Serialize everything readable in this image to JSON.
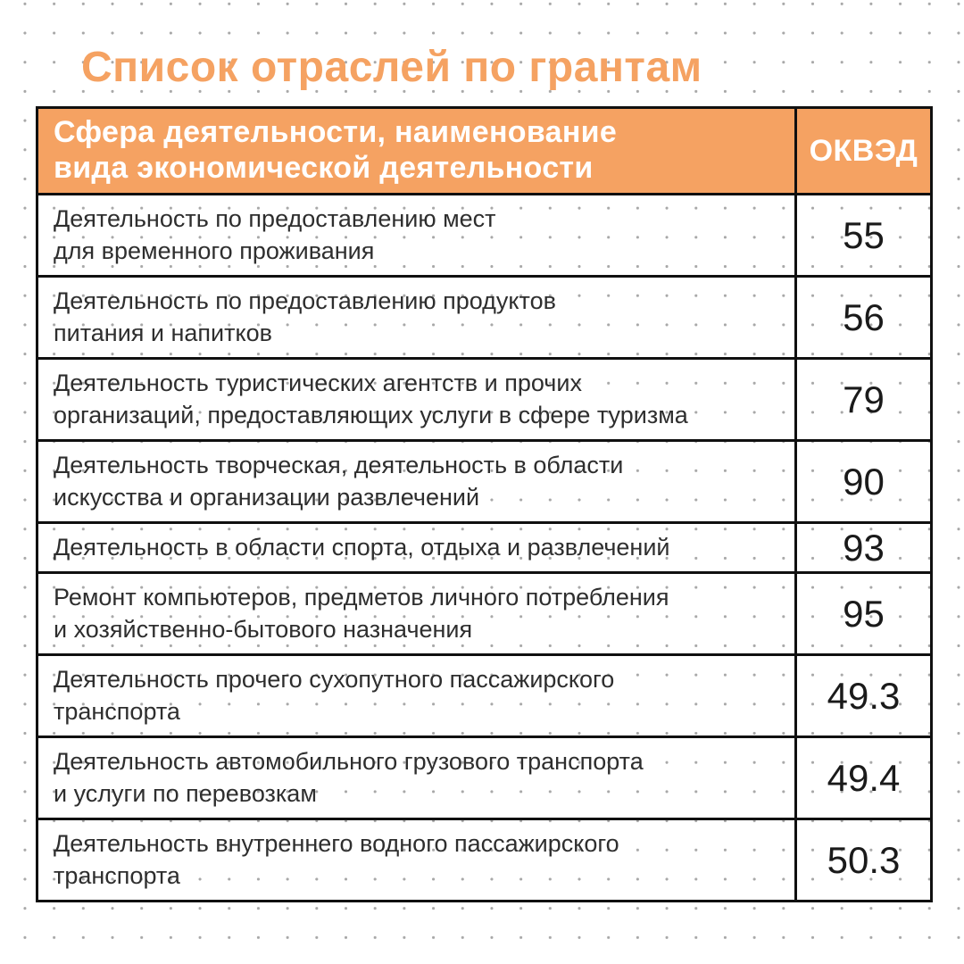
{
  "page": {
    "title": "Список отраслей по грантам"
  },
  "table": {
    "header": {
      "activity": "Сфера деятельности, наименование\nвида экономической деятельности",
      "code": "ОКВЭД"
    },
    "rows": [
      {
        "activity": "Деятельность по предоставлению мест\nдля временного проживания",
        "code": "55"
      },
      {
        "activity": "Деятельность по предоставлению продуктов\nпитания и напитков",
        "code": "56"
      },
      {
        "activity": "Деятельность туристических агентств и прочих\nорганизаций, предоставляющих услуги в сфере туризма",
        "code": "79"
      },
      {
        "activity": "Деятельность творческая, деятельность в области\nискусства и организации развлечений",
        "code": "90"
      },
      {
        "activity": "Деятельность в области спорта, отдыха и развлечений",
        "code": "93"
      },
      {
        "activity": "Ремонт компьютеров, предметов личного потребления\nи хозяйственно-бытового назначения",
        "code": "95"
      },
      {
        "activity": "Деятельность прочего сухопутного пассажирского\nтранспорта",
        "code": "49.3"
      },
      {
        "activity": "Деятельность автомобильного грузового транспорта\nи услуги по перевозкам",
        "code": "49.4"
      },
      {
        "activity": "Деятельность внутреннего водного пассажирского\nтранспорта",
        "code": "50.3"
      }
    ]
  },
  "colors": {
    "accent": "#F5A262",
    "header-text": "#FFFFFF",
    "body-text": "#2E2E2E",
    "number-text": "#1A1A1A",
    "border": "#101010",
    "dot": "#A8A8A8",
    "background": "#FFFFFF"
  }
}
